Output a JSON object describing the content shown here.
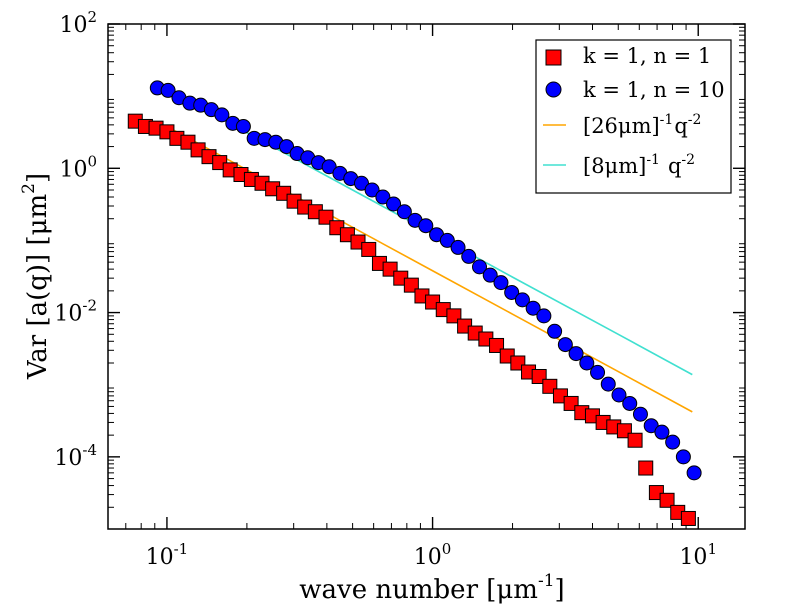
{
  "chart_data": {
    "type": "scatter",
    "title": "",
    "xscale": "log",
    "yscale": "log",
    "xlim": [
      0.06,
      15
    ],
    "ylim": [
      1e-05,
      100
    ],
    "xlabel": {
      "base": "wave number [μm",
      "sup": "-1",
      "tail": "]"
    },
    "ylabel": {
      "base": "Var [a(q)] [μm",
      "sup": "2",
      "tail": "]"
    },
    "xticks": [
      {
        "value": 0.1,
        "base": "10",
        "exp": "-1"
      },
      {
        "value": 1,
        "base": "10",
        "exp": "0"
      },
      {
        "value": 10,
        "base": "10",
        "exp": "1"
      }
    ],
    "yticks": [
      {
        "value": 100,
        "base": "10",
        "exp": "2"
      },
      {
        "value": 1,
        "base": "10",
        "exp": "0"
      },
      {
        "value": 0.01,
        "base": "10",
        "exp": "-2"
      },
      {
        "value": 0.0001,
        "base": "10",
        "exp": "-4"
      }
    ],
    "legend_position": "top-right",
    "series": [
      {
        "name": "k = 1, n = 1",
        "kind": "markers",
        "marker": "square",
        "color": "#ff0000",
        "x": [
          0.076,
          0.083,
          0.091,
          0.1,
          0.109,
          0.12,
          0.131,
          0.144,
          0.158,
          0.173,
          0.19,
          0.208,
          0.228,
          0.25,
          0.275,
          0.301,
          0.33,
          0.362,
          0.397,
          0.436,
          0.478,
          0.524,
          0.575,
          0.631,
          0.692,
          0.759,
          0.832,
          0.912,
          1.0,
          1.097,
          1.203,
          1.32,
          1.447,
          1.587,
          1.741,
          1.91,
          2.094,
          2.297,
          2.519,
          2.763,
          3.03,
          3.323,
          3.645,
          3.998,
          4.385,
          4.809,
          5.274,
          5.785,
          6.345,
          6.959,
          7.633,
          8.372,
          9.183
        ],
        "values": [
          4.5,
          3.8,
          3.6,
          3.2,
          2.6,
          2.3,
          1.8,
          1.45,
          1.2,
          0.95,
          0.82,
          0.7,
          0.62,
          0.52,
          0.45,
          0.35,
          0.29,
          0.25,
          0.21,
          0.15,
          0.12,
          0.095,
          0.075,
          0.048,
          0.04,
          0.03,
          0.024,
          0.017,
          0.014,
          0.011,
          0.009,
          0.0065,
          0.0052,
          0.0043,
          0.0035,
          0.0025,
          0.002,
          0.0015,
          0.0013,
          0.00095,
          0.0007,
          0.00055,
          0.00041,
          0.00037,
          0.0003,
          0.00026,
          0.00023,
          0.00017,
          7e-05,
          3.2e-05,
          2.5e-05,
          1.7e-05,
          1.4e-05
        ]
      },
      {
        "name": "k = 1, n = 10",
        "kind": "markers",
        "marker": "circle",
        "color": "#0000ff",
        "x": [
          0.092,
          0.101,
          0.111,
          0.122,
          0.134,
          0.147,
          0.161,
          0.177,
          0.194,
          0.213,
          0.234,
          0.257,
          0.282,
          0.309,
          0.339,
          0.372,
          0.408,
          0.448,
          0.492,
          0.54,
          0.592,
          0.65,
          0.713,
          0.783,
          0.859,
          0.943,
          1.035,
          1.136,
          1.247,
          1.368,
          1.502,
          1.648,
          1.809,
          1.985,
          2.179,
          2.391,
          2.624,
          2.88,
          3.161,
          3.469,
          3.807,
          4.178,
          4.585,
          5.032,
          5.523,
          6.061,
          6.652,
          7.3,
          8.012,
          8.793,
          9.65
        ],
        "values": [
          13,
          12,
          9.5,
          8,
          7.5,
          6.5,
          5.5,
          4.2,
          3.8,
          2.6,
          2.5,
          2.3,
          2.0,
          1.6,
          1.4,
          1.2,
          1.05,
          0.85,
          0.72,
          0.62,
          0.5,
          0.4,
          0.32,
          0.25,
          0.19,
          0.16,
          0.12,
          0.1,
          0.08,
          0.06,
          0.043,
          0.033,
          0.026,
          0.019,
          0.015,
          0.0115,
          0.009,
          0.0055,
          0.0036,
          0.0027,
          0.002,
          0.00148,
          0.00102,
          0.00072,
          0.00055,
          0.00039,
          0.00027,
          0.00022,
          0.00016,
          0.0001,
          6e-05
        ]
      },
      {
        "name": "[26μm]^{-1} q^{-2}",
        "label_parts": [
          "[26μm]",
          "-1",
          "q",
          "-2"
        ],
        "kind": "line",
        "color": "#ffa500",
        "x": [
          0.1,
          0.5,
          1.0,
          2.0,
          5.0,
          9.5
        ],
        "values": [
          3.8,
          0.152,
          0.038,
          0.0095,
          0.00152,
          0.00042
        ]
      },
      {
        "name": "[8μm]^{-1} q^{-2}",
        "label_parts": [
          "[8μm]",
          "-1",
          "q",
          "-2"
        ],
        "kind": "line",
        "color": "#40e0d0",
        "x": [
          0.092,
          0.5,
          1.0,
          2.0,
          5.0,
          9.5
        ],
        "values": [
          14.7,
          0.5,
          0.125,
          0.031,
          0.005,
          0.00138
        ]
      }
    ]
  }
}
